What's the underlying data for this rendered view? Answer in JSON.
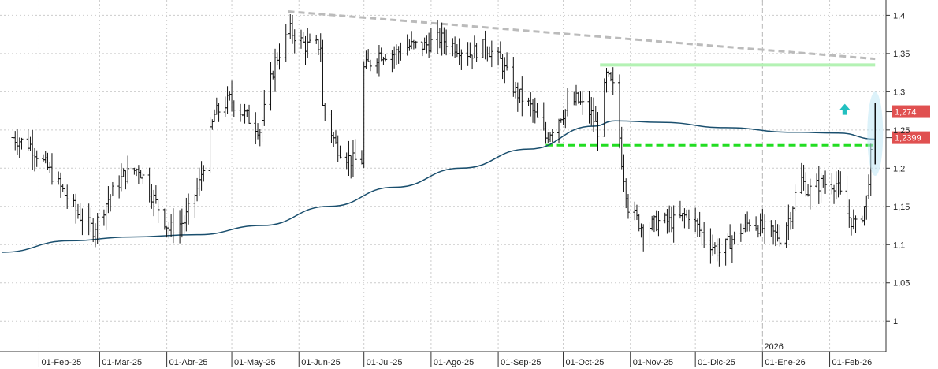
{
  "chart_data": {
    "type": "line",
    "subtype": "ohlc-bars",
    "ylim": [
      0.96,
      1.42
    ],
    "y_ticks": [
      "1,4",
      "1,35",
      "1,3",
      "1,25",
      "1,2",
      "1,15",
      "1,1",
      "1,05",
      "1"
    ],
    "x_ticks": [
      "01-Feb-25",
      "01-Mar-25",
      "01-Abr-25",
      "01-May-25",
      "01-Jun-25",
      "01-Jul-25",
      "01-Ago-25",
      "01-Sep-25",
      "01-Oct-25",
      "01-Nov-25",
      "01-Dic-25",
      "01-Ene-26",
      "01-Feb-26"
    ],
    "year_marker": "2026",
    "grid": true,
    "price_anchors": [
      [
        "2025-01-20",
        1.24
      ],
      [
        "2025-01-28",
        1.23
      ],
      [
        "2025-02-05",
        1.2
      ],
      [
        "2025-02-12",
        1.17
      ],
      [
        "2025-02-19",
        1.14
      ],
      [
        "2025-02-26",
        1.12
      ],
      [
        "2025-03-05",
        1.16
      ],
      [
        "2025-03-12",
        1.19
      ],
      [
        "2025-03-19",
        1.2
      ],
      [
        "2025-03-26",
        1.16
      ],
      [
        "2025-04-02",
        1.12
      ],
      [
        "2025-04-09",
        1.13
      ],
      [
        "2025-04-16",
        1.18
      ],
      [
        "2025-04-23",
        1.27
      ],
      [
        "2025-04-30",
        1.29
      ],
      [
        "2025-05-07",
        1.27
      ],
      [
        "2025-05-14",
        1.25
      ],
      [
        "2025-05-21",
        1.34
      ],
      [
        "2025-05-28",
        1.38
      ],
      [
        "2025-06-04",
        1.36
      ],
      [
        "2025-06-11",
        1.36
      ],
      [
        "2025-06-12",
        1.28
      ],
      [
        "2025-06-18",
        1.23
      ],
      [
        "2025-06-25",
        1.21
      ],
      [
        "2025-06-30",
        1.21
      ],
      [
        "2025-07-01",
        1.33
      ],
      [
        "2025-07-08",
        1.35
      ],
      [
        "2025-07-15",
        1.35
      ],
      [
        "2025-07-22",
        1.36
      ],
      [
        "2025-07-29",
        1.36
      ],
      [
        "2025-08-05",
        1.37
      ],
      [
        "2025-08-12",
        1.36
      ],
      [
        "2025-08-19",
        1.35
      ],
      [
        "2025-08-26",
        1.36
      ],
      [
        "2025-09-02",
        1.34
      ],
      [
        "2025-09-09",
        1.3
      ],
      [
        "2025-09-16",
        1.28
      ],
      [
        "2025-09-23",
        1.24
      ],
      [
        "2025-09-30",
        1.27
      ],
      [
        "2025-10-07",
        1.29
      ],
      [
        "2025-10-14",
        1.27
      ],
      [
        "2025-10-17",
        1.25
      ],
      [
        "2025-10-21",
        1.32
      ],
      [
        "2025-10-25",
        1.3
      ],
      [
        "2025-10-28",
        1.21
      ],
      [
        "2025-10-31",
        1.15
      ],
      [
        "2025-11-07",
        1.12
      ],
      [
        "2025-11-14",
        1.13
      ],
      [
        "2025-11-21",
        1.13
      ],
      [
        "2025-11-28",
        1.14
      ],
      [
        "2025-12-05",
        1.11
      ],
      [
        "2025-12-12",
        1.09
      ],
      [
        "2025-12-19",
        1.11
      ],
      [
        "2025-12-26",
        1.13
      ],
      [
        "2026-01-02",
        1.12
      ],
      [
        "2026-01-09",
        1.11
      ],
      [
        "2026-01-14",
        1.14
      ],
      [
        "2026-01-18",
        1.19
      ],
      [
        "2026-01-22",
        1.17
      ],
      [
        "2026-01-28",
        1.18
      ],
      [
        "2026-02-04",
        1.18
      ],
      [
        "2026-02-09",
        1.14
      ],
      [
        "2026-02-14",
        1.12
      ],
      [
        "2026-02-18",
        1.16
      ],
      [
        "2026-02-22",
        1.27
      ]
    ],
    "moving_average": [
      [
        "2025-01-15",
        1.09
      ],
      [
        "2025-02-15",
        1.105
      ],
      [
        "2025-03-15",
        1.11
      ],
      [
        "2025-04-15",
        1.113
      ],
      [
        "2025-05-15",
        1.125
      ],
      [
        "2025-06-15",
        1.15
      ],
      [
        "2025-07-15",
        1.175
      ],
      [
        "2025-08-15",
        1.2
      ],
      [
        "2025-09-15",
        1.225
      ],
      [
        "2025-10-15",
        1.255
      ],
      [
        "2025-10-25",
        1.262
      ],
      [
        "2025-11-15",
        1.26
      ],
      [
        "2025-12-15",
        1.253
      ],
      [
        "2026-01-15",
        1.247
      ],
      [
        "2026-02-05",
        1.246
      ],
      [
        "2026-02-22",
        1.238
      ]
    ],
    "trendline_resistance": [
      [
        "2025-05-27",
        1.405
      ],
      [
        "2026-02-22",
        1.343
      ]
    ],
    "horizontal_line_upper": {
      "value": 1.335,
      "from": "2025-10-18",
      "to": "2026-02-22",
      "color": "#b4f2b4"
    },
    "horizontal_line_lower": {
      "value": 1.23,
      "from": "2025-09-23",
      "to": "2026-02-22",
      "color": "#22dd22"
    },
    "highlight_ellipse": {
      "date": "2026-02-22",
      "y_from": 1.19,
      "y_to": 1.3,
      "color": "#bfe8f5"
    },
    "arrow_up": {
      "date": "2026-02-08",
      "value": 1.277,
      "color": "#22c0c0"
    },
    "price_tags": [
      {
        "label": "1,274",
        "value": 1.274,
        "color": "#e05050"
      },
      {
        "label": "1,2399",
        "value": 1.2399,
        "color": "#e05050"
      }
    ],
    "colors": {
      "bars": "#111111",
      "moving_average": "#1a4f6e",
      "trendline": "#bbbbbb",
      "grid": "#cccccc"
    }
  }
}
